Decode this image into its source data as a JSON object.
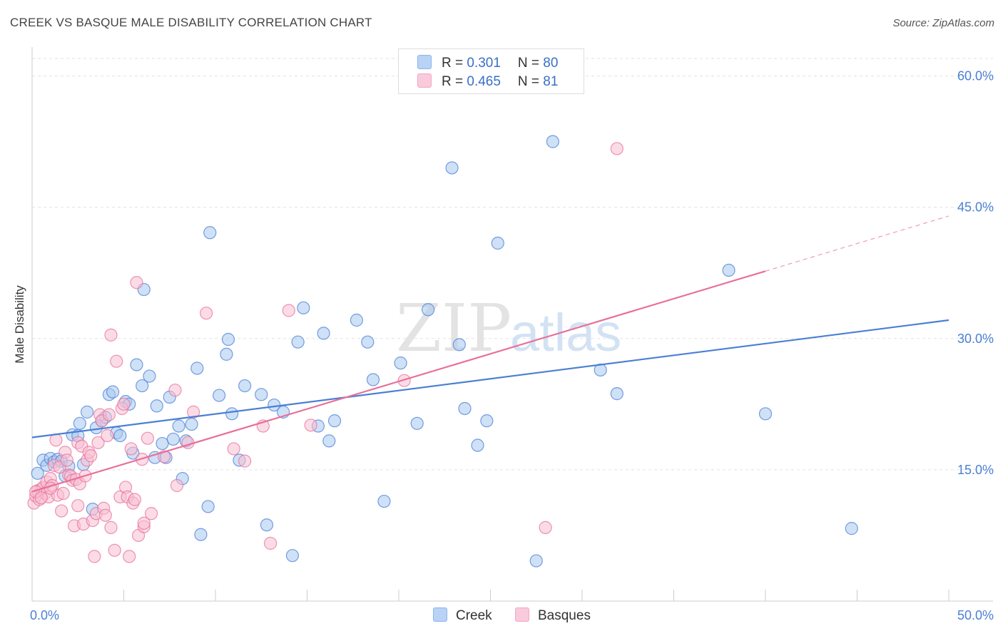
{
  "title": "CREEK VS BASQUE MALE DISABILITY CORRELATION CHART",
  "source": "Source: ZipAtlas.com",
  "watermark": {
    "zip": "ZIP",
    "atlas": "atlas"
  },
  "legend_top": [
    {
      "r_label": "R = ",
      "r_value": "0.301",
      "n_label": "N = ",
      "n_value": "80",
      "color": "#8ab4f0"
    },
    {
      "r_label": "R = ",
      "r_value": "0.465",
      "n_label": "N = ",
      "n_value": "81",
      "color": "#f4a6c0"
    }
  ],
  "chart_data": {
    "type": "scatter",
    "title": "CREEK VS BASQUE MALE DISABILITY CORRELATION CHART",
    "xlabel": "",
    "ylabel": "Male Disability",
    "xlim": [
      0,
      50
    ],
    "ylim": [
      0,
      62
    ],
    "x_tick_labels": [
      "0.0%",
      "50.0%"
    ],
    "y_ticks": [
      15,
      30,
      45,
      60
    ],
    "y_tick_labels": [
      "15.0%",
      "30.0%",
      "45.0%",
      "60.0%"
    ],
    "grid": true,
    "legend_position": "top-center and bottom",
    "series": [
      {
        "name": "Creek",
        "color": "#4a7fd4",
        "fill": "#a8c8f0",
        "trend": {
          "x0": 0,
          "y0": 18.7,
          "x1": 50,
          "y1": 32.1
        },
        "points": [
          [
            0.3,
            14.6
          ],
          [
            0.6,
            16.1
          ],
          [
            0.8,
            15.5
          ],
          [
            1.0,
            16.3
          ],
          [
            1.2,
            15.9
          ],
          [
            1.4,
            16.2
          ],
          [
            1.6,
            16.0
          ],
          [
            1.8,
            14.3
          ],
          [
            2.0,
            15.4
          ],
          [
            2.2,
            19.0
          ],
          [
            2.5,
            18.9
          ],
          [
            2.6,
            20.3
          ],
          [
            2.8,
            15.6
          ],
          [
            3.0,
            21.6
          ],
          [
            3.3,
            10.5
          ],
          [
            3.5,
            19.8
          ],
          [
            3.8,
            20.6
          ],
          [
            4.0,
            21.0
          ],
          [
            4.2,
            23.6
          ],
          [
            4.4,
            23.9
          ],
          [
            4.6,
            19.2
          ],
          [
            4.8,
            18.9
          ],
          [
            5.1,
            22.8
          ],
          [
            5.3,
            22.5
          ],
          [
            5.5,
            16.9
          ],
          [
            5.7,
            27.0
          ],
          [
            6.0,
            24.6
          ],
          [
            6.1,
            35.6
          ],
          [
            6.4,
            25.7
          ],
          [
            6.7,
            16.4
          ],
          [
            6.8,
            22.3
          ],
          [
            7.1,
            18.0
          ],
          [
            7.3,
            16.4
          ],
          [
            7.5,
            23.3
          ],
          [
            7.7,
            18.5
          ],
          [
            8.0,
            20.0
          ],
          [
            8.2,
            14.0
          ],
          [
            8.4,
            18.3
          ],
          [
            8.7,
            20.2
          ],
          [
            9.0,
            26.6
          ],
          [
            9.2,
            7.6
          ],
          [
            9.6,
            10.8
          ],
          [
            9.7,
            42.1
          ],
          [
            10.2,
            23.5
          ],
          [
            10.6,
            28.2
          ],
          [
            10.7,
            29.9
          ],
          [
            10.9,
            21.4
          ],
          [
            11.3,
            16.1
          ],
          [
            11.6,
            24.6
          ],
          [
            12.5,
            23.6
          ],
          [
            12.8,
            8.7
          ],
          [
            13.2,
            22.4
          ],
          [
            13.7,
            21.6
          ],
          [
            14.2,
            5.2
          ],
          [
            14.5,
            29.6
          ],
          [
            14.8,
            33.5
          ],
          [
            15.6,
            20.0
          ],
          [
            15.9,
            30.6
          ],
          [
            16.2,
            18.3
          ],
          [
            16.5,
            20.6
          ],
          [
            17.7,
            32.1
          ],
          [
            18.3,
            29.6
          ],
          [
            18.6,
            25.3
          ],
          [
            19.2,
            11.4
          ],
          [
            20.1,
            27.2
          ],
          [
            21.0,
            20.3
          ],
          [
            21.6,
            33.3
          ],
          [
            22.9,
            49.5
          ],
          [
            23.3,
            29.3
          ],
          [
            23.6,
            22.0
          ],
          [
            24.3,
            17.8
          ],
          [
            24.8,
            20.6
          ],
          [
            25.4,
            40.9
          ],
          [
            27.5,
            4.6
          ],
          [
            28.4,
            52.5
          ],
          [
            31.0,
            26.4
          ],
          [
            31.9,
            23.7
          ],
          [
            38.0,
            37.8
          ],
          [
            40.0,
            21.4
          ],
          [
            44.7,
            8.3
          ]
        ]
      },
      {
        "name": "Basques",
        "color": "#e8709a",
        "fill": "#f7bfd2",
        "trend": {
          "x0": 0,
          "y0": 12.5,
          "x1": 40,
          "y1": 37.7
        },
        "trend_extension": {
          "x0": 40,
          "y0": 37.7,
          "x1": 50,
          "y1": 44.0
        },
        "points": [
          [
            0.1,
            11.2
          ],
          [
            0.2,
            12.0
          ],
          [
            0.3,
            12.6
          ],
          [
            0.4,
            11.6
          ],
          [
            0.5,
            12.8
          ],
          [
            0.6,
            13.0
          ],
          [
            0.7,
            12.3
          ],
          [
            0.8,
            13.6
          ],
          [
            0.9,
            11.9
          ],
          [
            1.0,
            14.0
          ],
          [
            1.1,
            13.2
          ],
          [
            1.2,
            15.5
          ],
          [
            1.3,
            18.4
          ],
          [
            1.4,
            12.1
          ],
          [
            1.5,
            15.3
          ],
          [
            1.6,
            10.3
          ],
          [
            1.7,
            12.3
          ],
          [
            1.8,
            17.0
          ],
          [
            1.9,
            16.1
          ],
          [
            2.0,
            14.4
          ],
          [
            2.1,
            14.3
          ],
          [
            2.2,
            13.8
          ],
          [
            2.3,
            8.6
          ],
          [
            2.4,
            13.9
          ],
          [
            2.5,
            18.1
          ],
          [
            2.5,
            10.9
          ],
          [
            2.6,
            13.4
          ],
          [
            2.7,
            17.7
          ],
          [
            2.8,
            8.8
          ],
          [
            2.9,
            14.3
          ],
          [
            3.0,
            16.1
          ],
          [
            3.1,
            17.0
          ],
          [
            3.2,
            16.6
          ],
          [
            3.3,
            9.2
          ],
          [
            3.4,
            5.1
          ],
          [
            3.5,
            10.0
          ],
          [
            3.6,
            18.1
          ],
          [
            3.7,
            21.3
          ],
          [
            3.8,
            20.6
          ],
          [
            3.9,
            10.6
          ],
          [
            4.0,
            9.8
          ],
          [
            4.1,
            18.9
          ],
          [
            4.2,
            21.3
          ],
          [
            4.3,
            8.4
          ],
          [
            4.3,
            30.4
          ],
          [
            4.5,
            5.8
          ],
          [
            4.6,
            27.4
          ],
          [
            4.8,
            11.9
          ],
          [
            4.9,
            22.0
          ],
          [
            5.0,
            22.5
          ],
          [
            5.1,
            13.0
          ],
          [
            5.2,
            11.9
          ],
          [
            5.3,
            5.1
          ],
          [
            5.4,
            17.4
          ],
          [
            5.5,
            11.2
          ],
          [
            5.6,
            11.6
          ],
          [
            5.7,
            36.4
          ],
          [
            5.8,
            7.5
          ],
          [
            6.0,
            16.2
          ],
          [
            6.1,
            8.5
          ],
          [
            6.1,
            8.9
          ],
          [
            6.3,
            18.6
          ],
          [
            6.5,
            10.0
          ],
          [
            7.2,
            16.5
          ],
          [
            7.8,
            24.1
          ],
          [
            7.9,
            13.2
          ],
          [
            8.5,
            18.1
          ],
          [
            8.8,
            21.6
          ],
          [
            9.5,
            32.9
          ],
          [
            11.0,
            17.4
          ],
          [
            11.6,
            16.0
          ],
          [
            12.6,
            20.0
          ],
          [
            13.0,
            6.6
          ],
          [
            14.0,
            33.2
          ],
          [
            15.2,
            20.1
          ],
          [
            20.3,
            25.2
          ],
          [
            28.0,
            8.4
          ],
          [
            31.9,
            51.7
          ],
          [
            0.2,
            12.5
          ],
          [
            0.5,
            11.8
          ],
          [
            1.0,
            12.9
          ]
        ]
      }
    ]
  },
  "bottom_legend": [
    {
      "label": "Creek",
      "color": "#a8c8f0",
      "border": "#4a7fd4"
    },
    {
      "label": "Basques",
      "color": "#f7bfd2",
      "border": "#e8709a"
    }
  ]
}
